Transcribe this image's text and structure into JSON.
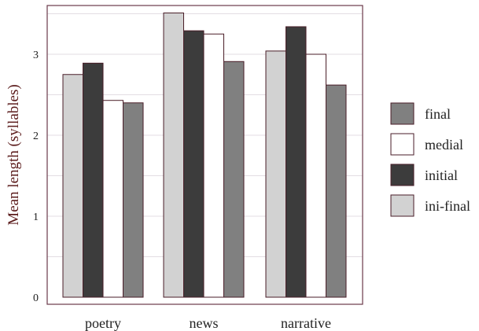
{
  "chart_data": {
    "type": "bar",
    "title": "",
    "xlabel": "",
    "ylabel": "Mean length (syllables)",
    "categories": [
      "poetry",
      "news",
      "narrative"
    ],
    "ylim": [
      0,
      3.6
    ],
    "yticks": [
      0,
      1,
      2,
      3
    ],
    "grid": true,
    "legend_position": "right",
    "bar_order": [
      "ini-final",
      "initial",
      "medial",
      "final"
    ],
    "series": [
      {
        "name": "final",
        "color": "#808080",
        "values": [
          2.4,
          2.91,
          2.62
        ]
      },
      {
        "name": "medial",
        "color": "#ffffff",
        "values": [
          2.43,
          3.25,
          3.0
        ]
      },
      {
        "name": "initial",
        "color": "#3c3c3c",
        "values": [
          2.89,
          3.29,
          3.34
        ]
      },
      {
        "name": "ini-final",
        "color": "#d2d2d2",
        "values": [
          2.75,
          3.51,
          3.04
        ]
      }
    ],
    "bar_outline_color": "#4a1e28",
    "grid_color": "#e3dde3",
    "frame_color": "#6a3a4a"
  }
}
